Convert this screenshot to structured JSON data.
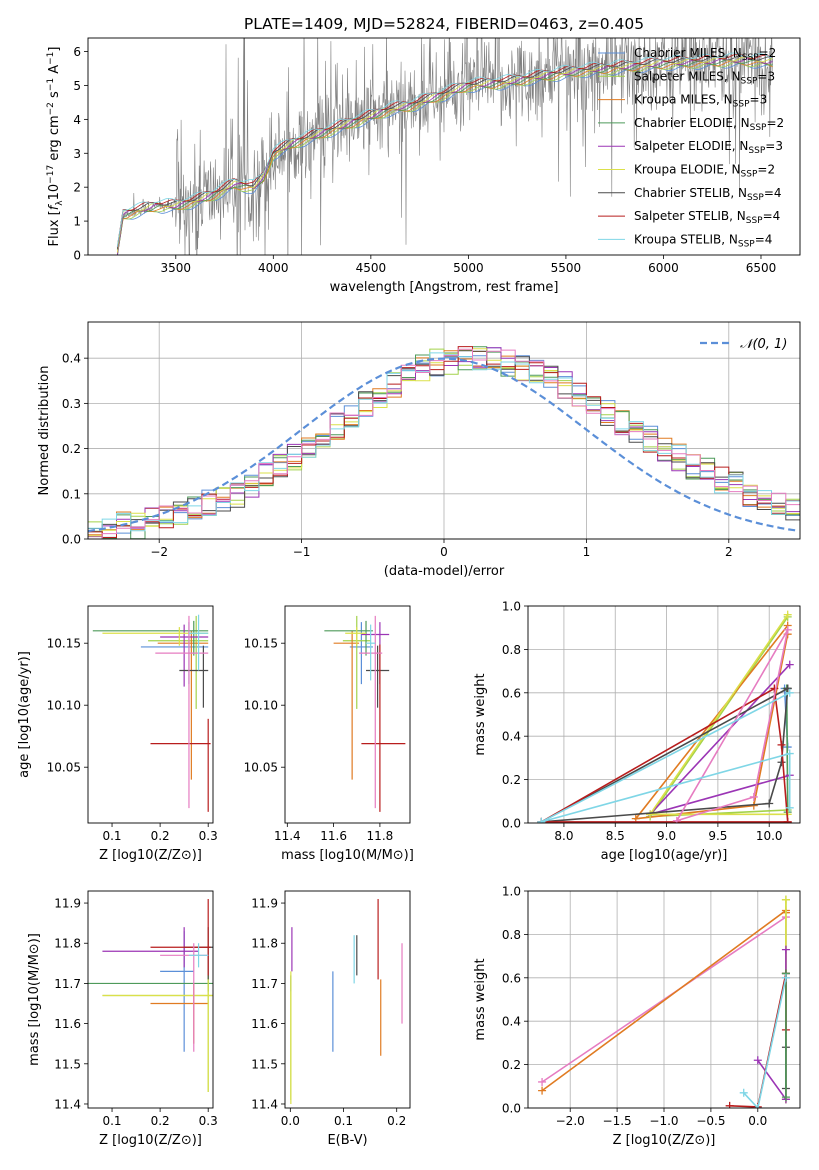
{
  "figure": {
    "title": "PLATE=1409, MJD=52824, FIBERID=0463, z=0.405"
  },
  "chart_data": [
    {
      "id": "spectrum",
      "type": "line",
      "title": "PLATE=1409, MJD=52824, FIBERID=0463, z=0.405",
      "xlabel": "wavelength [Angstrom, rest frame]",
      "ylabel": "Flux [f_λ 10^-17 erg cm^-2 s^-1 A^-1]",
      "xlim": [
        3050,
        6700
      ],
      "ylim": [
        0,
        6.4
      ],
      "xticks": [
        3500,
        4000,
        4500,
        5000,
        5500,
        6000,
        6500
      ],
      "yticks": [
        0,
        1,
        2,
        3,
        4,
        5,
        6
      ],
      "grid": false,
      "legend_position": "upper right",
      "data_color": "#808080",
      "data_continuum": {
        "x": [
          3200,
          3230,
          3400,
          3500,
          3600,
          3700,
          3800,
          3900,
          3950,
          4000,
          4100,
          4200,
          4300,
          4400,
          4500,
          4600,
          4700,
          4800,
          4900,
          5000,
          5200,
          5400,
          5600,
          5800,
          6000,
          6200,
          6400,
          6550
        ],
        "y": [
          0.05,
          1.2,
          1.45,
          1.45,
          1.6,
          1.8,
          2.1,
          2.0,
          2.3,
          3.0,
          3.3,
          3.5,
          3.7,
          3.9,
          4.1,
          4.3,
          4.4,
          4.6,
          4.8,
          5.0,
          5.1,
          5.3,
          5.45,
          5.55,
          5.65,
          5.7,
          5.75,
          5.7
        ]
      },
      "models": [
        {
          "name": "Chabrier MILES",
          "nssp": "2",
          "color": "#5b8fd8"
        },
        {
          "name": "Salpeter MILES",
          "nssp": "3",
          "color": "#a3d24b"
        },
        {
          "name": "Kroupa MILES",
          "nssp": "3",
          "color": "#e07b22"
        },
        {
          "name": "Chabrier ELODIE",
          "nssp": "2",
          "color": "#4e9a5a"
        },
        {
          "name": "Salpeter ELODIE",
          "nssp": "3",
          "color": "#9b35b5"
        },
        {
          "name": "Kroupa ELODIE",
          "nssp": "2",
          "color": "#dbe04a"
        },
        {
          "name": "Chabrier STELIB",
          "nssp": "4",
          "color": "#4a4a4a"
        },
        {
          "name": "Salpeter STELIB",
          "nssp": "4",
          "color": "#b81d1d"
        },
        {
          "name": "Kroupa STELIB",
          "nssp": "4",
          "color": "#7fd6e6"
        }
      ]
    },
    {
      "id": "residuals",
      "type": "bar",
      "xlabel": "(data-model)/error",
      "ylabel": "Normed distribution",
      "xlim": [
        -2.5,
        2.5
      ],
      "ylim": [
        0,
        0.48
      ],
      "xticks": [
        -2,
        -1,
        0,
        1,
        2
      ],
      "yticks": [
        0.0,
        0.1,
        0.2,
        0.3,
        0.4
      ],
      "grid": true,
      "legend_position": "upper right",
      "legend_label": "𝒩(0, 1)",
      "bin_width": 0.1,
      "base_histogram": [
        0.01,
        0.02,
        0.03,
        0.03,
        0.04,
        0.05,
        0.06,
        0.07,
        0.08,
        0.09,
        0.1,
        0.12,
        0.14,
        0.16,
        0.18,
        0.2,
        0.22,
        0.25,
        0.27,
        0.3,
        0.32,
        0.34,
        0.36,
        0.38,
        0.39,
        0.39,
        0.4,
        0.4,
        0.4,
        0.39,
        0.38,
        0.37,
        0.36,
        0.34,
        0.32,
        0.3,
        0.28,
        0.26,
        0.24,
        0.22,
        0.2,
        0.18,
        0.16,
        0.15,
        0.13,
        0.12,
        0.1,
        0.09,
        0.08,
        0.07
      ]
    },
    {
      "id": "age_vs_Z",
      "type": "scatter",
      "xlabel": "Z [log10(Z/Z⊙)]",
      "ylabel": "age  [log10(age/yr)]",
      "xlim": [
        0.05,
        0.31
      ],
      "ylim": [
        10.005,
        10.18
      ],
      "xticks": [
        0.1,
        0.2,
        0.3
      ],
      "yticks": [
        10.05,
        10.1,
        10.15
      ],
      "grid": false,
      "points": [
        {
          "x": 0.26,
          "y": 10.147,
          "xerr": [
            0.1,
            0.04
          ],
          "yerr": [
            0.03,
            0.02
          ],
          "color": "#5b8fd8"
        },
        {
          "x": 0.275,
          "y": 10.152,
          "xerr": [
            0.1,
            0.025
          ],
          "yerr": [
            0.055,
            0.02
          ],
          "color": "#a3d24b"
        },
        {
          "x": 0.265,
          "y": 10.15,
          "xerr": [
            0.07,
            0.035
          ],
          "yerr": [
            0.11,
            0.01
          ],
          "color": "#e07b22"
        },
        {
          "x": 0.27,
          "y": 10.16,
          "xerr": [
            0.21,
            0.03
          ],
          "yerr": [
            0.02,
            0.008
          ],
          "color": "#4e9a5a"
        },
        {
          "x": 0.25,
          "y": 10.155,
          "xerr": [
            0.05,
            0.05
          ],
          "yerr": [
            0.04,
            0.01
          ],
          "color": "#9b35b5"
        },
        {
          "x": 0.24,
          "y": 10.158,
          "xerr": [
            0.16,
            0.06
          ],
          "yerr": [
            0.01,
            0.005
          ],
          "color": "#dbe04a"
        },
        {
          "x": 0.29,
          "y": 10.128,
          "xerr": [
            0.05,
            0.01
          ],
          "yerr": [
            0.03,
            0.02
          ],
          "color": "#4a4a4a"
        },
        {
          "x": 0.3,
          "y": 10.069,
          "xerr": [
            0.12,
            0.005
          ],
          "yerr": [
            0.055,
            0.02
          ],
          "color": "#b81d1d"
        },
        {
          "x": 0.26,
          "y": 10.142,
          "xerr": [
            0.07,
            0.04
          ],
          "yerr": [
            0.125,
            0.03
          ],
          "color": "#e67cc1"
        },
        {
          "x": 0.28,
          "y": 10.158,
          "xerr": [
            0.02,
            0.02
          ],
          "yerr": [
            0.03,
            0.015
          ],
          "color": "#7fd6e6"
        }
      ]
    },
    {
      "id": "age_vs_mass",
      "type": "scatter",
      "xlabel": "mass [log10(M/M⊙)]",
      "ylabel": "",
      "xlim": [
        11.39,
        11.93
      ],
      "ylim": [
        10.005,
        10.18
      ],
      "xticks": [
        11.4,
        11.6,
        11.8
      ],
      "yticks": [
        10.05,
        10.1,
        10.15
      ],
      "grid": false,
      "points": [
        {
          "x": 11.72,
          "y": 10.147,
          "xerr": [
            0.05,
            0.05
          ],
          "yerr": [
            0.03,
            0.02
          ],
          "color": "#5b8fd8"
        },
        {
          "x": 11.7,
          "y": 10.152,
          "xerr": [
            0.06,
            0.06
          ],
          "yerr": [
            0.055,
            0.02
          ],
          "color": "#a3d24b"
        },
        {
          "x": 11.68,
          "y": 10.15,
          "xerr": [
            0.08,
            0.03
          ],
          "yerr": [
            0.11,
            0.01
          ],
          "color": "#e07b22"
        },
        {
          "x": 11.74,
          "y": 10.16,
          "xerr": [
            0.18,
            0.03
          ],
          "yerr": [
            0.02,
            0.008
          ],
          "color": "#4e9a5a"
        },
        {
          "x": 11.8,
          "y": 10.157,
          "xerr": [
            0.08,
            0.04
          ],
          "yerr": [
            0.04,
            0.01
          ],
          "color": "#9b35b5"
        },
        {
          "x": 11.7,
          "y": 10.158,
          "xerr": [
            0.05,
            0.04
          ],
          "yerr": [
            0.01,
            0.005
          ],
          "color": "#dbe04a"
        },
        {
          "x": 11.79,
          "y": 10.128,
          "xerr": [
            0.05,
            0.05
          ],
          "yerr": [
            0.03,
            0.02
          ],
          "color": "#4a4a4a"
        },
        {
          "x": 11.8,
          "y": 10.069,
          "xerr": [
            0.08,
            0.11
          ],
          "yerr": [
            0.055,
            0.08
          ],
          "color": "#b81d1d"
        },
        {
          "x": 11.78,
          "y": 10.142,
          "xerr": [
            0.07,
            0.03
          ],
          "yerr": [
            0.125,
            0.03
          ],
          "color": "#e67cc1"
        },
        {
          "x": 11.76,
          "y": 10.15,
          "xerr": [
            0.02,
            0.02
          ],
          "yerr": [
            0.03,
            0.015
          ],
          "color": "#7fd6e6"
        }
      ]
    },
    {
      "id": "weight_vs_age",
      "type": "line",
      "xlabel": "age  [log10(age/yr)]",
      "ylabel": "mass weight",
      "xlim": [
        7.65,
        10.3
      ],
      "ylim": [
        0,
        1.0
      ],
      "xticks": [
        8.0,
        8.5,
        9.0,
        9.5,
        10.0
      ],
      "yticks": [
        0.0,
        0.2,
        0.4,
        0.6,
        0.8,
        1.0
      ],
      "grid": true,
      "series": [
        {
          "color": "#5b8fd8",
          "x": [
            10.18,
            10.15
          ],
          "y": [
            0.35,
            0.62
          ]
        },
        {
          "color": "#a3d24b",
          "x": [
            10.18,
            8.84,
            10.18
          ],
          "y": [
            0.06,
            0.03,
            0.95
          ]
        },
        {
          "color": "#e07b22",
          "x": [
            10.18,
            8.7,
            9.85,
            10.18
          ],
          "y": [
            0.91,
            0.02,
            0.08,
            0.87
          ]
        },
        {
          "color": "#4e9a5a",
          "x": [
            10.18,
            10.17
          ],
          "y": [
            0.05,
            0.62
          ]
        },
        {
          "color": "#9b35b5",
          "x": [
            10.2,
            8.84,
            10.2
          ],
          "y": [
            0.22,
            0.04,
            0.73
          ]
        },
        {
          "color": "#dbe04a",
          "x": [
            10.18,
            8.84,
            10.18
          ],
          "y": [
            0.04,
            0.04,
            0.96
          ]
        },
        {
          "color": "#4a4a4a",
          "x": [
            10.18,
            10.12,
            10.0,
            7.78,
            10.18
          ],
          "y": [
            0.62,
            0.28,
            0.09,
            0.005,
            0.62
          ]
        },
        {
          "color": "#b81d1d",
          "x": [
            10.18,
            10.12,
            10.05,
            7.78,
            10.18
          ],
          "y": [
            0.005,
            0.36,
            0.62,
            0.005,
            0.005
          ]
        },
        {
          "color": "#e67cc1",
          "x": [
            10.18,
            9.85,
            9.1,
            10.18
          ],
          "y": [
            0.89,
            0.12,
            0.01,
            0.89
          ]
        },
        {
          "color": "#7fd6e6",
          "x": [
            10.2,
            10.2,
            7.78,
            10.2
          ],
          "y": [
            0.07,
            0.32,
            0.005,
            0.6
          ]
        }
      ]
    },
    {
      "id": "mass_vs_Z",
      "type": "scatter",
      "xlabel": "Z [log10(Z/Z⊙)]",
      "ylabel": "mass [log10(M/M⊙)]",
      "xlim": [
        0.05,
        0.31
      ],
      "ylim": [
        11.39,
        11.93
      ],
      "xticks": [
        0.1,
        0.2,
        0.3
      ],
      "yticks": [
        11.4,
        11.5,
        11.6,
        11.7,
        11.8,
        11.9
      ],
      "grid": false,
      "points": [
        {
          "x": 0.25,
          "y": 11.73,
          "xerr": [
            0.05,
            0.02
          ],
          "yerr": [
            0.2,
            0.1
          ],
          "color": "#5b8fd8"
        },
        {
          "x": 0.3,
          "y": 11.67,
          "xerr": [
            0.22,
            0.01
          ],
          "yerr": [
            0.24,
            0.05
          ],
          "color": "#a3d24b"
        },
        {
          "x": 0.27,
          "y": 11.65,
          "xerr": [
            0.09,
            0.03
          ],
          "yerr": [
            0.1,
            0.05
          ],
          "color": "#e07b22"
        },
        {
          "x": 0.3,
          "y": 11.7,
          "xerr": [
            0.25,
            0.01
          ],
          "yerr": [
            0.02,
            0.02
          ],
          "color": "#4e9a5a"
        },
        {
          "x": 0.25,
          "y": 11.78,
          "xerr": [
            0.17,
            0.03
          ],
          "yerr": [
            0.04,
            0.06
          ],
          "color": "#9b35b5"
        },
        {
          "x": 0.3,
          "y": 11.67,
          "xerr": [
            0.22,
            0.01
          ],
          "yerr": [
            0.24,
            0.05
          ],
          "color": "#dbe04a"
        },
        {
          "x": 0.3,
          "y": 11.79,
          "xerr": [
            0.05,
            0.01
          ],
          "yerr": [
            0.08,
            0.05
          ],
          "color": "#4a4a4a"
        },
        {
          "x": 0.3,
          "y": 11.79,
          "xerr": [
            0.12,
            0.005
          ],
          "yerr": [
            0.07,
            0.12
          ],
          "color": "#b81d1d"
        },
        {
          "x": 0.27,
          "y": 11.77,
          "xerr": [
            0.07,
            0.03
          ],
          "yerr": [
            0.24,
            0.03
          ],
          "color": "#e67cc1"
        },
        {
          "x": 0.28,
          "y": 11.77,
          "xerr": [
            0.02,
            0.02
          ],
          "yerr": [
            0.03,
            0.03
          ],
          "color": "#7fd6e6"
        }
      ]
    },
    {
      "id": "mass_vs_ebv",
      "type": "scatter",
      "xlabel": "E(B-V)",
      "ylabel": "",
      "xlim": [
        -0.01,
        0.225
      ],
      "ylim": [
        11.39,
        11.93
      ],
      "xticks": [
        0.0,
        0.1,
        0.2
      ],
      "yticks": [
        11.4,
        11.5,
        11.6,
        11.7,
        11.8,
        11.9
      ],
      "grid": false,
      "points": [
        {
          "x": 0.08,
          "y": 11.63,
          "yerr": [
            0.1,
            0.1
          ],
          "color": "#5b8fd8"
        },
        {
          "x": 0.001,
          "y": 11.58,
          "yerr": [
            0.17,
            0.1
          ],
          "color": "#a3d24b"
        },
        {
          "x": 0.17,
          "y": 11.59,
          "yerr": [
            0.07,
            0.12
          ],
          "color": "#e07b22"
        },
        {
          "x": 0.001,
          "y": 11.7,
          "yerr": [
            0.02,
            0.02
          ],
          "color": "#4e9a5a"
        },
        {
          "x": 0.003,
          "y": 11.78,
          "yerr": [
            0.05,
            0.06
          ],
          "color": "#9b35b5"
        },
        {
          "x": 0.001,
          "y": 11.6,
          "yerr": [
            0.2,
            0.13
          ],
          "color": "#dbe04a"
        },
        {
          "x": 0.125,
          "y": 11.76,
          "yerr": [
            0.04,
            0.06
          ],
          "color": "#4a4a4a"
        },
        {
          "x": 0.165,
          "y": 11.81,
          "yerr": [
            0.1,
            0.1
          ],
          "color": "#b81d1d"
        },
        {
          "x": 0.21,
          "y": 11.7,
          "yerr": [
            0.1,
            0.1
          ],
          "color": "#e67cc1"
        },
        {
          "x": 0.12,
          "y": 11.75,
          "yerr": [
            0.05,
            0.07
          ],
          "color": "#7fd6e6"
        }
      ]
    },
    {
      "id": "weight_vs_Z",
      "type": "line",
      "xlabel": "Z [log10(Z/Z⊙)]",
      "ylabel": "mass weight",
      "xlim": [
        -2.45,
        0.45
      ],
      "ylim": [
        0,
        1.0
      ],
      "xticks": [
        -2.0,
        -1.5,
        -1.0,
        -0.5,
        0.0
      ],
      "yticks": [
        0.0,
        0.2,
        0.4,
        0.6,
        0.8,
        1.0
      ],
      "grid": true,
      "series": [
        {
          "color": "#e67cc1",
          "x": [
            -2.3,
            0.3,
            0.3
          ],
          "y": [
            0.12,
            0.88,
            0.6
          ]
        },
        {
          "color": "#e07b22",
          "x": [
            -2.3,
            0.3,
            0.3
          ],
          "y": [
            0.08,
            0.91,
            0.9
          ]
        },
        {
          "color": "#a3d24b",
          "x": [
            0.3,
            0.3
          ],
          "y": [
            0.96,
            0.04
          ]
        },
        {
          "color": "#dbe04a",
          "x": [
            0.3,
            0.3
          ],
          "y": [
            0.96,
            0.04
          ]
        },
        {
          "color": "#9b35b5",
          "x": [
            0.0,
            0.3,
            0.3
          ],
          "y": [
            0.22,
            0.04,
            0.73
          ]
        },
        {
          "color": "#4a4a4a",
          "x": [
            0.3,
            0.3,
            0.3
          ],
          "y": [
            0.62,
            0.28,
            0.09
          ]
        },
        {
          "color": "#b81d1d",
          "x": [
            -0.3,
            0.0,
            0.3,
            0.3
          ],
          "y": [
            0.01,
            0.005,
            0.62,
            0.36
          ]
        },
        {
          "color": "#4e9a5a",
          "x": [
            0.3,
            0.3
          ],
          "y": [
            0.05,
            0.62
          ]
        },
        {
          "color": "#7fd6e6",
          "x": [
            -0.15,
            0.0,
            0.3
          ],
          "y": [
            0.07,
            0.0,
            0.6
          ]
        }
      ]
    }
  ]
}
